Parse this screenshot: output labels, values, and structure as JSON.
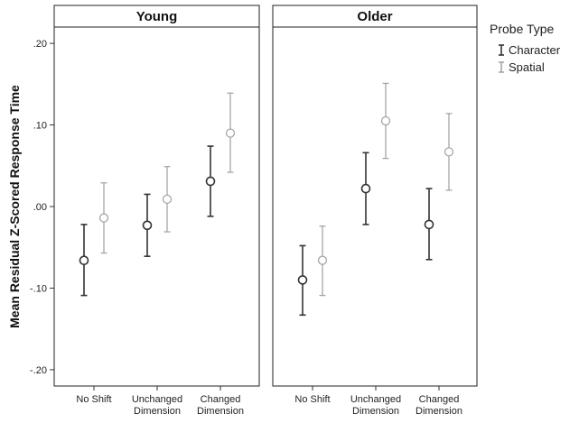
{
  "chart_data": {
    "type": "scatter",
    "subtype": "error-bar",
    "ylabel": "Mean Residual Z-Scored Response Time",
    "ylim": [
      -0.22,
      0.22
    ],
    "yticks": [
      0.2,
      0.1,
      0.0,
      -0.1,
      -0.2
    ],
    "ytick_labels": [
      ".20",
      ".10",
      ".00",
      "-.10",
      "-.20"
    ],
    "categories": [
      {
        "line1": "No Shift",
        "line2": ""
      },
      {
        "line1": "Unchanged",
        "line2": "Dimension"
      },
      {
        "line1": "Changed",
        "line2": "Dimension"
      }
    ],
    "legend": {
      "title": "Probe Type",
      "position": "top-right",
      "entries": [
        {
          "name": "Character",
          "color": "#333333"
        },
        {
          "name": "Spatial",
          "color": "#a6a6a6"
        }
      ]
    },
    "panels": [
      {
        "title": "Young",
        "series": [
          {
            "name": "Character",
            "color": "#333333",
            "mean": [
              -0.066,
              -0.023,
              0.031
            ],
            "lower": [
              -0.109,
              -0.061,
              -0.012
            ],
            "upper": [
              -0.022,
              0.015,
              0.074
            ]
          },
          {
            "name": "Spatial",
            "color": "#a6a6a6",
            "mean": [
              -0.014,
              0.009,
              0.09
            ],
            "lower": [
              -0.057,
              -0.031,
              0.042
            ],
            "upper": [
              0.029,
              0.049,
              0.139
            ]
          }
        ]
      },
      {
        "title": "Older",
        "series": [
          {
            "name": "Character",
            "color": "#333333",
            "mean": [
              -0.09,
              0.022,
              -0.022
            ],
            "lower": [
              -0.133,
              -0.022,
              -0.065
            ],
            "upper": [
              -0.048,
              0.066,
              0.022
            ]
          },
          {
            "name": "Spatial",
            "color": "#a6a6a6",
            "mean": [
              -0.066,
              0.105,
              0.067
            ],
            "lower": [
              -0.109,
              0.059,
              0.02
            ],
            "upper": [
              -0.024,
              0.151,
              0.114
            ]
          }
        ]
      }
    ]
  }
}
